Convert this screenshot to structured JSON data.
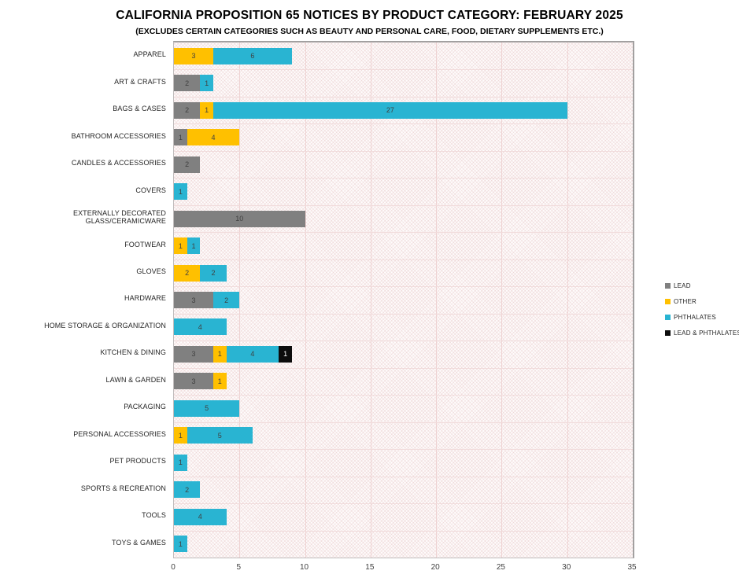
{
  "title": "CALIFORNIA PROPOSITION 65 NOTICES BY PRODUCT CATEGORY: FEBRUARY 2025",
  "subtitle": "(EXCLUDES CERTAIN CATEGORIES SUCH AS BEAUTY AND PERSONAL CARE, FOOD, DIETARY SUPPLEMENTS ETC.)",
  "chart_data": {
    "type": "bar",
    "orientation": "horizontal",
    "stacked": true,
    "title": "CALIFORNIA PROPOSITION 65 NOTICES BY PRODUCT CATEGORY: FEBRUARY 2025",
    "subtitle": "(EXCLUDES CERTAIN CATEGORIES SUCH AS BEAUTY AND PERSONAL CARE, FOOD, DIETARY SUPPLEMENTS ETC.)",
    "xlabel": "",
    "ylabel": "",
    "xlim": [
      0,
      35
    ],
    "xticks": [
      0,
      5,
      10,
      15,
      20,
      25,
      30,
      35
    ],
    "grid": true,
    "legend_position": "right",
    "plot_bg_pattern": "diagonal-crosshatch-light-pink",
    "categories": [
      "APPAREL",
      "ART & CRAFTS",
      "BAGS & CASES",
      "BATHROOM ACCESSORIES",
      "CANDLES & ACCESSORIES",
      "COVERS",
      "EXTERNALLY DECORATED GLASS/CERAMICWARE",
      "FOOTWEAR",
      "GLOVES",
      "HARDWARE",
      "HOME STORAGE & ORGANIZATION",
      "KITCHEN & DINING",
      "LAWN & GARDEN",
      "PACKAGING",
      "PERSONAL ACCESSORIES",
      "PET PRODUCTS",
      "SPORTS & RECREATION",
      "TOOLS",
      "TOYS & GAMES"
    ],
    "series": [
      {
        "name": "LEAD",
        "color": "#808080",
        "label_color": "#3f3f3f",
        "values": [
          0,
          2,
          2,
          1,
          2,
          0,
          10,
          0,
          0,
          3,
          0,
          3,
          3,
          0,
          0,
          0,
          0,
          0,
          0
        ]
      },
      {
        "name": "OTHER",
        "color": "#FFC000",
        "label_color": "#3f3f3f",
        "values": [
          3,
          0,
          1,
          4,
          0,
          0,
          0,
          1,
          2,
          0,
          0,
          1,
          1,
          0,
          1,
          0,
          0,
          0,
          0
        ]
      },
      {
        "name": "PHTHALATES",
        "color": "#29B4D2",
        "label_color": "#3f3f3f",
        "values": [
          6,
          1,
          27,
          0,
          0,
          1,
          0,
          1,
          2,
          2,
          4,
          4,
          0,
          5,
          5,
          1,
          2,
          4,
          1
        ]
      },
      {
        "name": "LEAD & PHTHALATES",
        "color": "#0D0D0D",
        "label_color": "#ffffff",
        "values": [
          0,
          0,
          0,
          0,
          0,
          0,
          0,
          0,
          0,
          0,
          0,
          1,
          0,
          0,
          0,
          0,
          0,
          0,
          0
        ]
      }
    ]
  }
}
